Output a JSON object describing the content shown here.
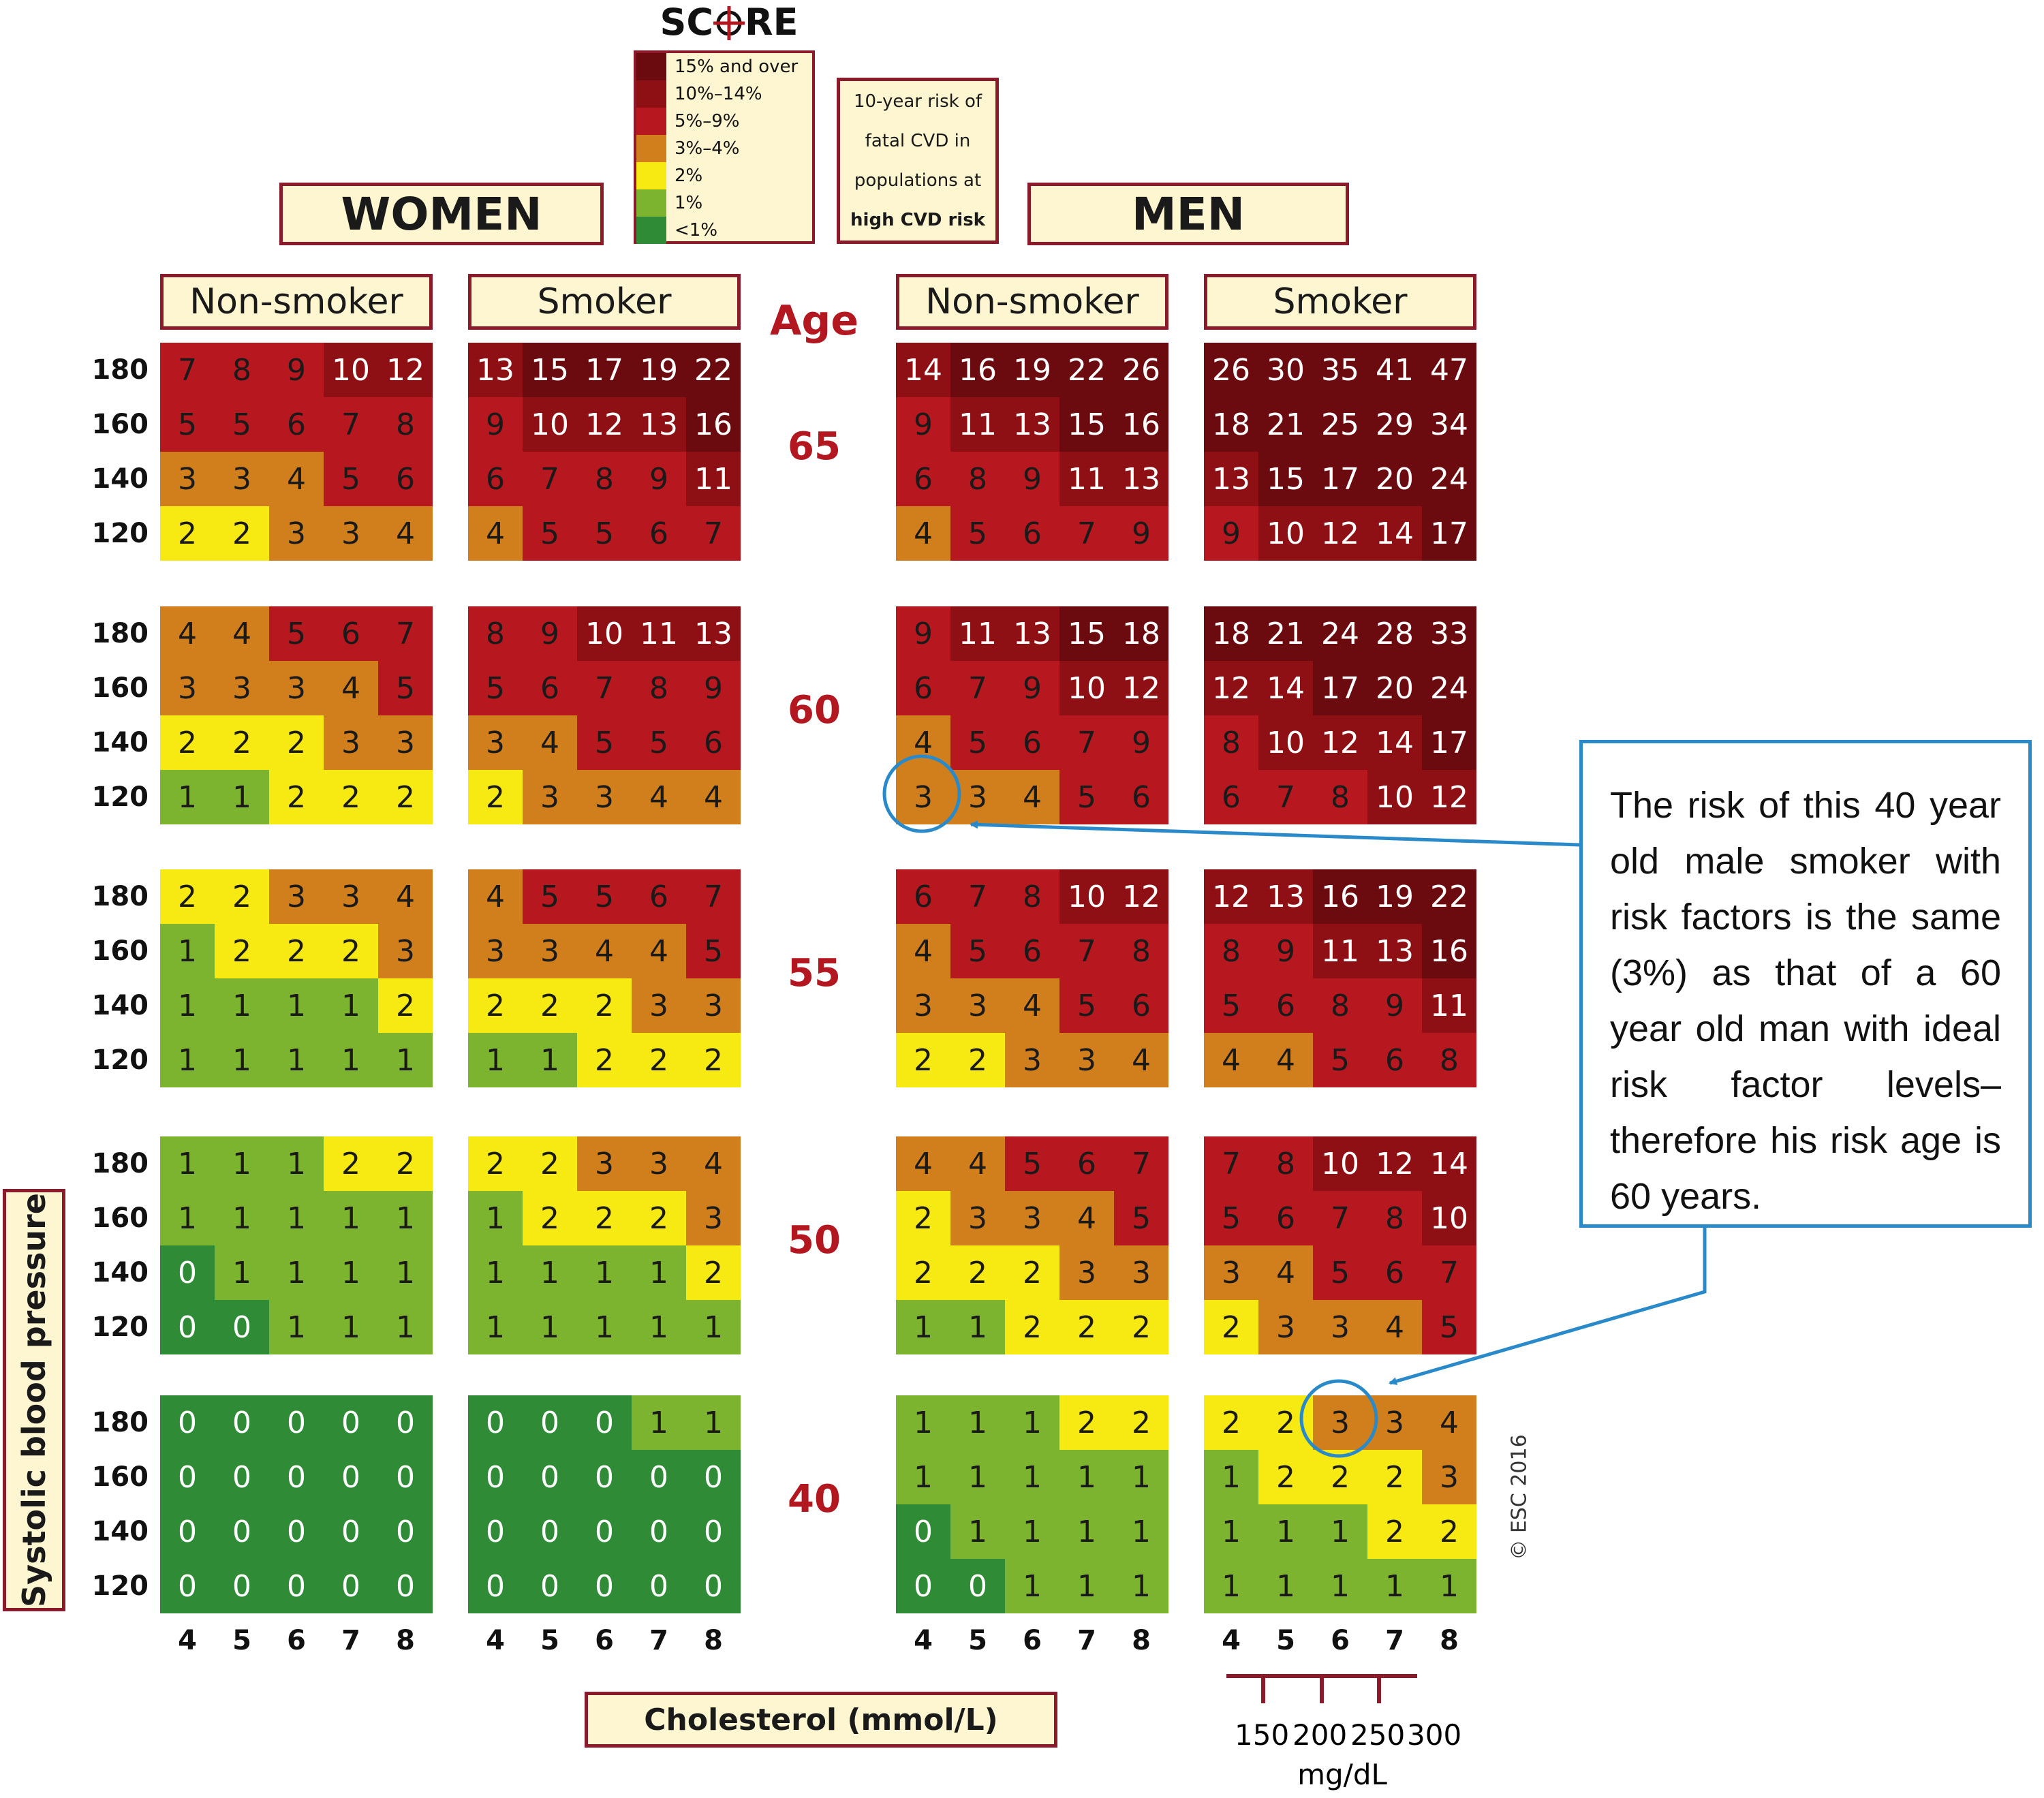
{
  "title": {
    "pre": "SC",
    "post": "RE"
  },
  "legend": [
    {
      "label": "15% and over",
      "color": "#6b0a0f"
    },
    {
      "label": "10%–14%",
      "color": "#8e1015"
    },
    {
      "label": "5%–9%",
      "color": "#b7171e"
    },
    {
      "label": "3%–4%",
      "color": "#d07f1c"
    },
    {
      "label": "2%",
      "color": "#f6ea12"
    },
    {
      "label": "1%",
      "color": "#7db42f"
    },
    {
      "label": "<1%",
      "color": "#2f8b35"
    }
  ],
  "risk_note": [
    "10-year risk of",
    "fatal CVD in",
    "populations at",
    "high CVD risk"
  ],
  "sex_labels": {
    "women": "WOMEN",
    "men": "MEN"
  },
  "panel_labels": {
    "non_smoker": "Non-smoker",
    "smoker": "Smoker"
  },
  "age_header": "Age",
  "y_axis_label": "Systolic blood pressure",
  "x_axis_label": "Cholesterol (mmol/L)",
  "mgdl": {
    "ticks": [
      "150",
      "200",
      "250",
      "300"
    ],
    "unit": "mg/dL"
  },
  "copyright": "© ESC 2016",
  "callout": "The risk of this 40 year old male smoker with risk factors is the same (3%) as that of a 60 year old man with ideal risk factor levels–therefore his risk age is 60 years.",
  "chart_data": {
    "type": "heatmap",
    "title": "SCORE",
    "cholesterol_mmol_l": [
      4,
      5,
      6,
      7,
      8
    ],
    "systolic_bp": [
      180,
      160,
      140,
      120
    ],
    "ages": [
      65,
      60,
      55,
      50,
      40
    ],
    "groups": [
      {
        "sex": "WOMEN",
        "smoking": "Non-smoker",
        "values": {
          "65": [
            [
              7,
              8,
              9,
              10,
              12
            ],
            [
              5,
              5,
              6,
              7,
              8
            ],
            [
              3,
              3,
              4,
              5,
              6
            ],
            [
              2,
              2,
              3,
              3,
              4
            ]
          ],
          "60": [
            [
              4,
              4,
              5,
              6,
              7
            ],
            [
              3,
              3,
              3,
              4,
              5
            ],
            [
              2,
              2,
              2,
              3,
              3
            ],
            [
              1,
              1,
              2,
              2,
              2
            ]
          ],
          "55": [
            [
              2,
              2,
              3,
              3,
              4
            ],
            [
              1,
              2,
              2,
              2,
              3
            ],
            [
              1,
              1,
              1,
              1,
              2
            ],
            [
              1,
              1,
              1,
              1,
              1
            ]
          ],
          "50": [
            [
              1,
              1,
              1,
              2,
              2
            ],
            [
              1,
              1,
              1,
              1,
              1
            ],
            [
              0,
              1,
              1,
              1,
              1
            ],
            [
              0,
              0,
              1,
              1,
              1
            ]
          ],
          "40": [
            [
              0,
              0,
              0,
              0,
              0
            ],
            [
              0,
              0,
              0,
              0,
              0
            ],
            [
              0,
              0,
              0,
              0,
              0
            ],
            [
              0,
              0,
              0,
              0,
              0
            ]
          ]
        }
      },
      {
        "sex": "WOMEN",
        "smoking": "Smoker",
        "values": {
          "65": [
            [
              13,
              15,
              17,
              19,
              22
            ],
            [
              9,
              10,
              12,
              13,
              16
            ],
            [
              6,
              7,
              8,
              9,
              11
            ],
            [
              4,
              5,
              5,
              6,
              7
            ]
          ],
          "60": [
            [
              8,
              9,
              10,
              11,
              13
            ],
            [
              5,
              6,
              7,
              8,
              9
            ],
            [
              3,
              4,
              5,
              5,
              6
            ],
            [
              2,
              3,
              3,
              4,
              4
            ]
          ],
          "55": [
            [
              4,
              5,
              5,
              6,
              7
            ],
            [
              3,
              3,
              4,
              4,
              5
            ],
            [
              2,
              2,
              2,
              3,
              3
            ],
            [
              1,
              1,
              2,
              2,
              2
            ]
          ],
          "50": [
            [
              2,
              2,
              3,
              3,
              4
            ],
            [
              1,
              2,
              2,
              2,
              3
            ],
            [
              1,
              1,
              1,
              1,
              2
            ],
            [
              1,
              1,
              1,
              1,
              1
            ]
          ],
          "40": [
            [
              0,
              0,
              0,
              1,
              1
            ],
            [
              0,
              0,
              0,
              0,
              0
            ],
            [
              0,
              0,
              0,
              0,
              0
            ],
            [
              0,
              0,
              0,
              0,
              0
            ]
          ]
        }
      },
      {
        "sex": "MEN",
        "smoking": "Non-smoker",
        "values": {
          "65": [
            [
              14,
              16,
              19,
              22,
              26
            ],
            [
              9,
              11,
              13,
              15,
              16
            ],
            [
              6,
              8,
              9,
              11,
              13
            ],
            [
              4,
              5,
              6,
              7,
              9
            ]
          ],
          "60": [
            [
              9,
              11,
              13,
              15,
              18
            ],
            [
              6,
              7,
              9,
              10,
              12
            ],
            [
              4,
              5,
              6,
              7,
              9
            ],
            [
              3,
              3,
              4,
              5,
              6
            ]
          ],
          "55": [
            [
              6,
              7,
              8,
              10,
              12
            ],
            [
              4,
              5,
              6,
              7,
              8
            ],
            [
              3,
              3,
              4,
              5,
              6
            ],
            [
              2,
              2,
              3,
              3,
              4
            ]
          ],
          "50": [
            [
              4,
              4,
              5,
              6,
              7
            ],
            [
              2,
              3,
              3,
              4,
              5
            ],
            [
              2,
              2,
              2,
              3,
              3
            ],
            [
              1,
              1,
              2,
              2,
              2
            ]
          ],
          "40": [
            [
              1,
              1,
              1,
              2,
              2
            ],
            [
              1,
              1,
              1,
              1,
              1
            ],
            [
              0,
              1,
              1,
              1,
              1
            ],
            [
              0,
              0,
              1,
              1,
              1
            ]
          ]
        }
      },
      {
        "sex": "MEN",
        "smoking": "Smoker",
        "values": {
          "65": [
            [
              26,
              30,
              35,
              41,
              47
            ],
            [
              18,
              21,
              25,
              29,
              34
            ],
            [
              13,
              15,
              17,
              20,
              24
            ],
            [
              9,
              10,
              12,
              14,
              17
            ]
          ],
          "60": [
            [
              18,
              21,
              24,
              28,
              33
            ],
            [
              12,
              14,
              17,
              20,
              24
            ],
            [
              8,
              10,
              12,
              14,
              17
            ],
            [
              6,
              7,
              8,
              10,
              12
            ]
          ],
          "55": [
            [
              12,
              13,
              16,
              19,
              22
            ],
            [
              8,
              9,
              11,
              13,
              16
            ],
            [
              5,
              6,
              8,
              9,
              11
            ],
            [
              4,
              4,
              5,
              6,
              8
            ]
          ],
          "50": [
            [
              7,
              8,
              10,
              12,
              14
            ],
            [
              5,
              6,
              7,
              8,
              10
            ],
            [
              3,
              4,
              5,
              6,
              7
            ],
            [
              2,
              3,
              3,
              4,
              5
            ]
          ],
          "40": [
            [
              2,
              2,
              3,
              3,
              4
            ],
            [
              1,
              2,
              2,
              2,
              3
            ],
            [
              1,
              1,
              1,
              2,
              2
            ],
            [
              1,
              1,
              1,
              1,
              1
            ]
          ]
        }
      }
    ]
  }
}
